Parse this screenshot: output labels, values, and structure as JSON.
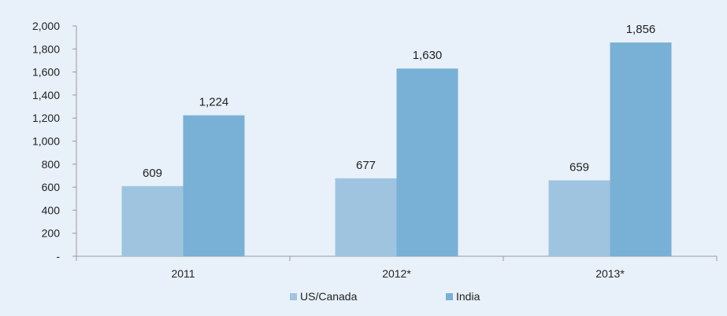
{
  "chart_data": {
    "type": "bar",
    "categories": [
      "2011",
      "2012*",
      "2013*"
    ],
    "series": [
      {
        "name": "US/Canada",
        "values": [
          609,
          677,
          659
        ],
        "color": "#9ec4e0"
      },
      {
        "name": "India",
        "values": [
          1224,
          1630,
          1856
        ],
        "color": "#79b0d6"
      }
    ],
    "data_labels": [
      [
        "609",
        "677",
        "659"
      ],
      [
        "1,224",
        "1,630",
        "1,856"
      ]
    ],
    "y_ticks": [
      {
        "value": 0,
        "label": "-"
      },
      {
        "value": 200,
        "label": "200"
      },
      {
        "value": 400,
        "label": "400"
      },
      {
        "value": 600,
        "label": "600"
      },
      {
        "value": 800,
        "label": "800"
      },
      {
        "value": 1000,
        "label": "1,000"
      },
      {
        "value": 1200,
        "label": "1,200"
      },
      {
        "value": 1400,
        "label": "1,400"
      },
      {
        "value": 1600,
        "label": "1,600"
      },
      {
        "value": 1800,
        "label": "1,800"
      },
      {
        "value": 2000,
        "label": "2,000"
      }
    ],
    "ylim": [
      0,
      2000
    ],
    "grid": false,
    "legend_position": "bottom-center",
    "title": "",
    "xlabel": "",
    "ylabel": ""
  }
}
